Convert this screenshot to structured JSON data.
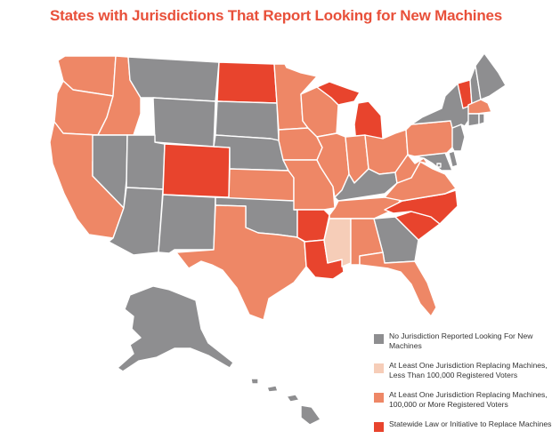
{
  "title": "States with Jurisdictions That Report Looking for New Machines",
  "legend": [
    {
      "label": "No Jurisdiction Reported Looking For New Machines",
      "color": "#8e8e90"
    },
    {
      "label": "At Least One Jurisdiction Replacing Machines, Less Than 100,000 Registered Voters",
      "color": "#f6cdb8"
    },
    {
      "label": "At Least One Jurisdiction Replacing Machines, 100,000 or More Registered Voters",
      "color": "#ee8766"
    },
    {
      "label": "Statewide Law or Initiative to Replace Machines",
      "color": "#e8442d"
    }
  ],
  "states": {
    "Washington": "#ee8766",
    "Oregon": "#ee8766",
    "California": "#ee8766",
    "Idaho": "#ee8766",
    "Nevada": "#8e8e90",
    "Montana": "#8e8e90",
    "Wyoming": "#8e8e90",
    "Utah": "#8e8e90",
    "Arizona": "#8e8e90",
    "Colorado": "#e8442d",
    "New Mexico": "#8e8e90",
    "North Dakota": "#e8442d",
    "South Dakota": "#8e8e90",
    "Nebraska": "#8e8e90",
    "Kansas": "#ee8766",
    "Oklahoma": "#8e8e90",
    "Texas": "#ee8766",
    "Minnesota": "#ee8766",
    "Iowa": "#ee8766",
    "Missouri": "#ee8766",
    "Arkansas": "#e8442d",
    "Louisiana": "#e8442d",
    "Wisconsin": "#ee8766",
    "Illinois": "#ee8766",
    "Michigan": "#e8442d",
    "Indiana": "#ee8766",
    "Ohio": "#ee8766",
    "Kentucky": "#8e8e90",
    "Tennessee": "#ee8766",
    "Mississippi": "#f6cdb8",
    "Alabama": "#ee8766",
    "Georgia": "#8e8e90",
    "Florida": "#ee8766",
    "South Carolina": "#e8442d",
    "North Carolina": "#e8442d",
    "Virginia": "#ee8766",
    "West Virginia": "#ee8766",
    "Maryland": "#8e8e90",
    "Delaware": "#8e8e90",
    "New Jersey": "#8e8e90",
    "Pennsylvania": "#ee8766",
    "New York": "#8e8e90",
    "Vermont": "#e8442d",
    "New Hampshire": "#8e8e90",
    "Maine": "#8e8e90",
    "Massachusetts": "#ee8766",
    "Connecticut": "#8e8e90",
    "Rhode Island": "#8e8e90",
    "Alaska": "#8e8e90",
    "Hawaii": "#8e8e90",
    "District of Columbia": "#8e8e90"
  }
}
